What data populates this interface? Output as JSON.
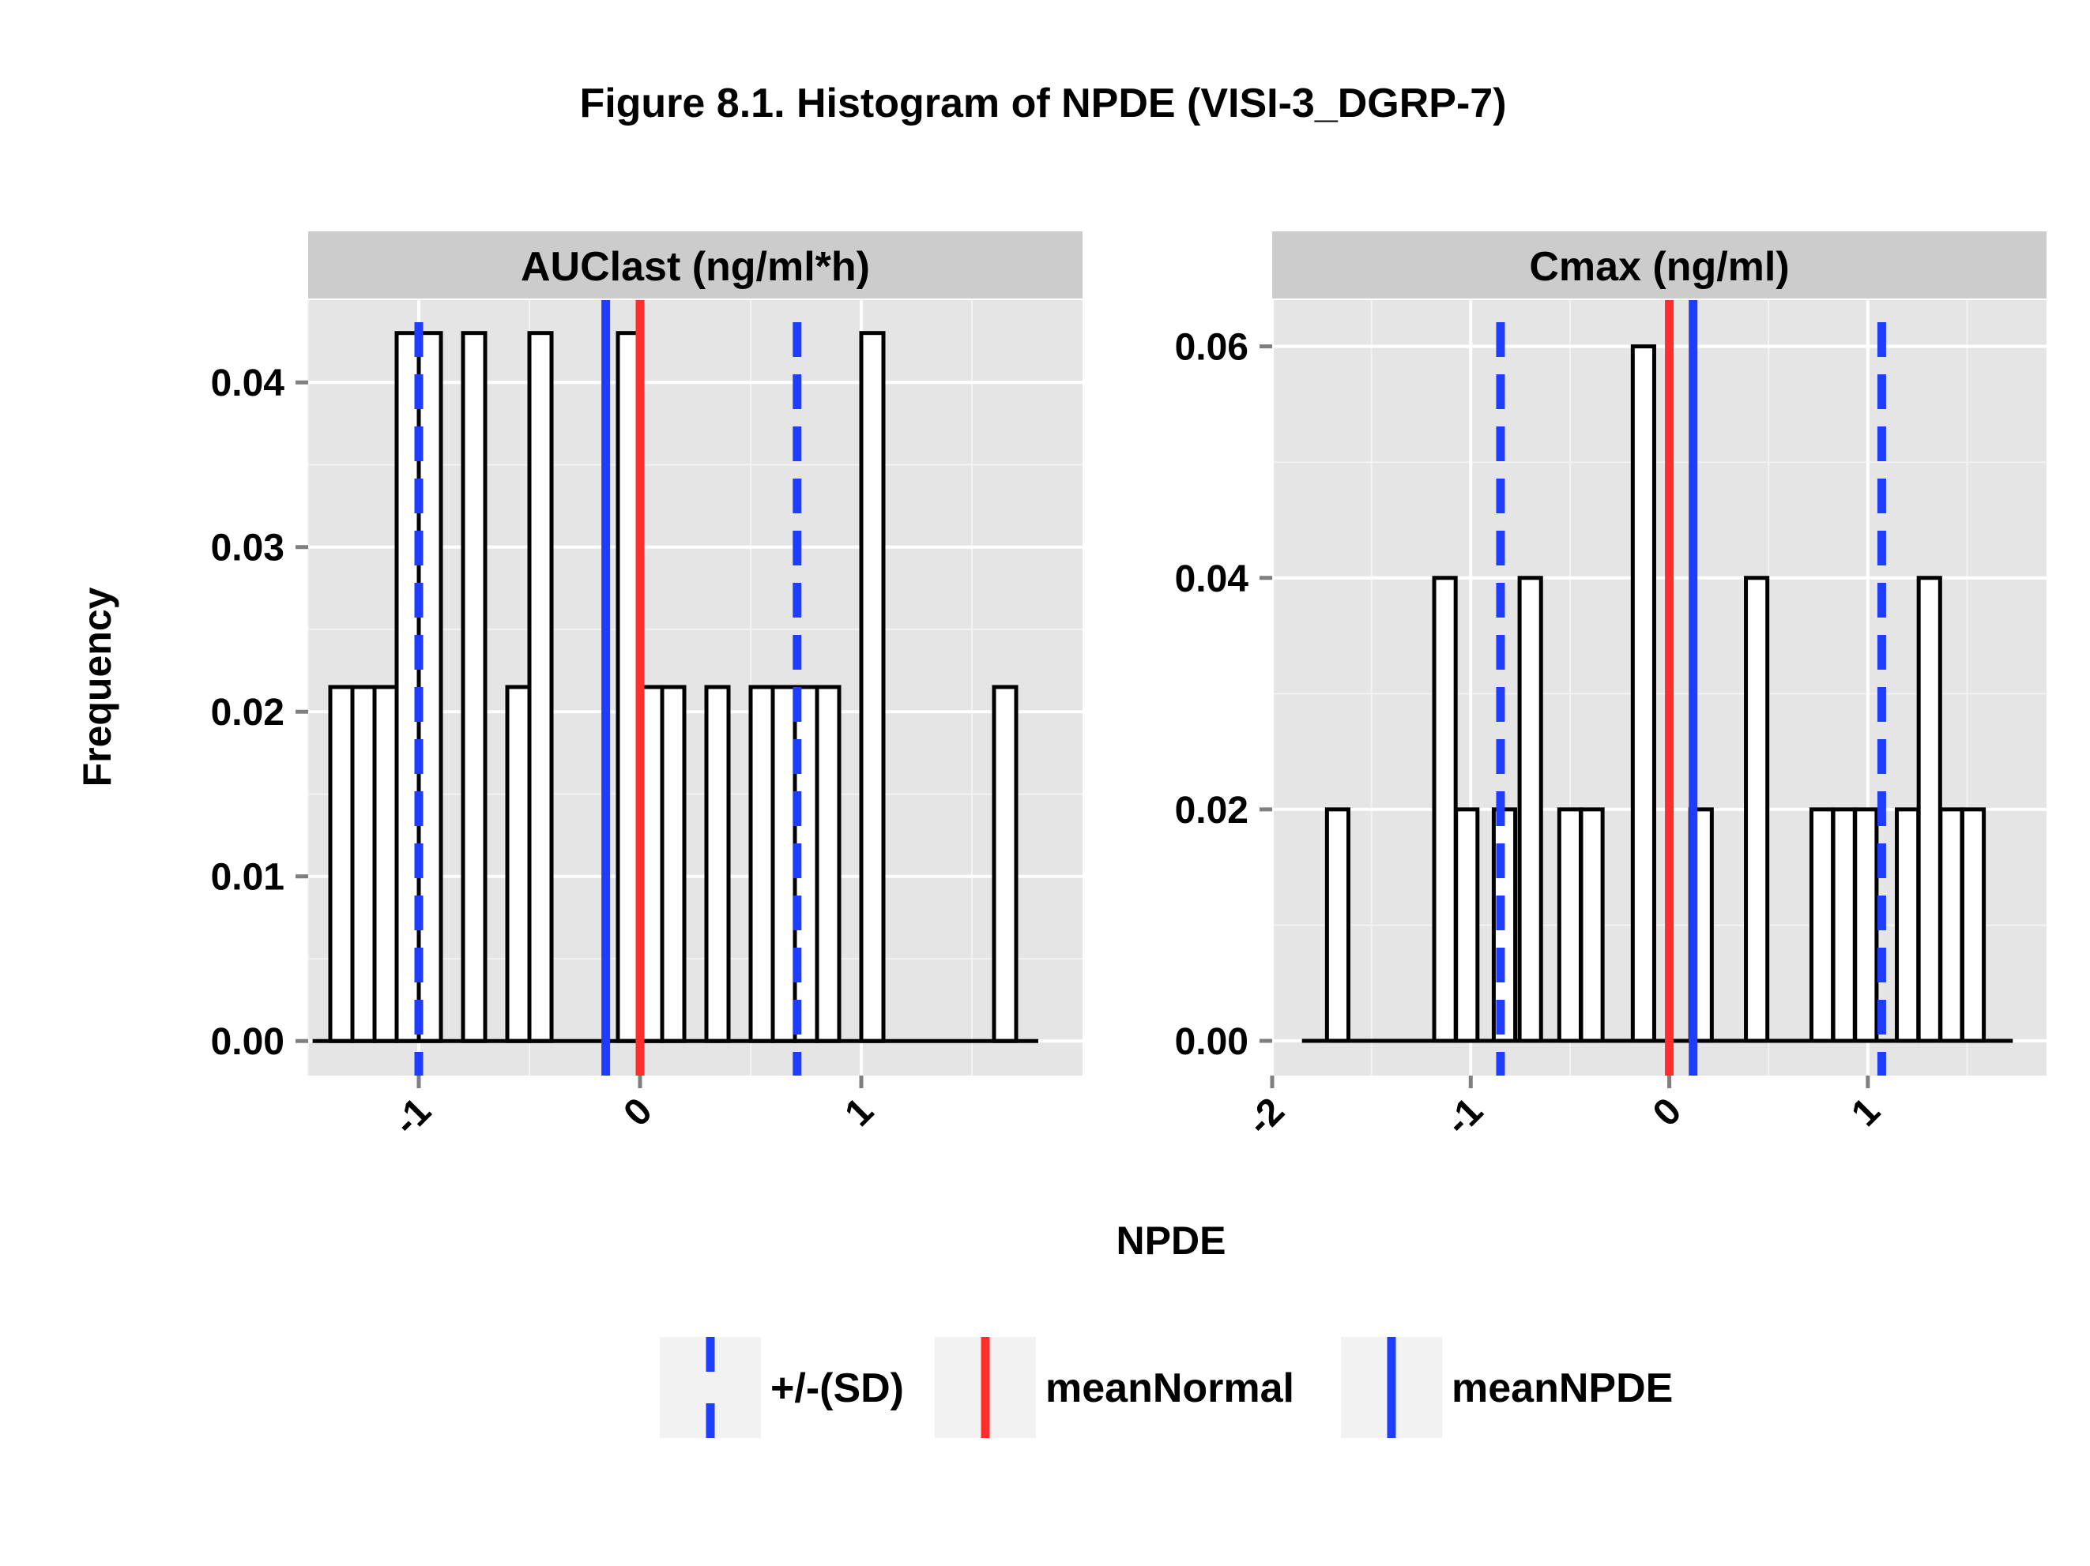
{
  "title": "Figure 8.1. Histogram of NPDE (VISI-3_DGRP-7)",
  "xlabel": "NPDE",
  "ylabel": "Frequency",
  "colors": {
    "panel_bg": "#E5E5E5",
    "strip_bg": "#CCCCCC",
    "grid": "#FFFFFF",
    "bar_fill": "#FFFFFF",
    "bar_stroke": "#000000",
    "sd_line": "#1E3DFF",
    "mean_normal": "#FF2D2D",
    "mean_npde": "#1E3DFF",
    "legend_key_bg": "#F2F2F2"
  },
  "legend": {
    "items": [
      {
        "label": "+/-(SD)",
        "style": "dashed",
        "color": "#1E3DFF"
      },
      {
        "label": "meanNormal",
        "style": "solid",
        "color": "#FF2D2D"
      },
      {
        "label": "meanNPDE",
        "style": "solid",
        "color": "#1E3DFF"
      }
    ]
  },
  "chart_data": [
    {
      "type": "bar",
      "panel_title": "AUClast (ng/ml*h)",
      "xlim": [
        -1.5,
        2.0
      ],
      "ylim": [
        -0.0021,
        0.045
      ],
      "xticks": [
        -1,
        0,
        1
      ],
      "xtick_labels": [
        "-1",
        "0",
        "1"
      ],
      "yticks": [
        0.0,
        0.01,
        0.02,
        0.03,
        0.04
      ],
      "ytick_labels": [
        "0.00",
        "0.01",
        "0.02",
        "0.03",
        "0.04"
      ],
      "bin_width": 0.1,
      "baseline_range": [
        -1.48,
        1.8
      ],
      "bins": [
        {
          "x": -1.35,
          "y": 0.0215
        },
        {
          "x": -1.25,
          "y": 0.0215
        },
        {
          "x": -1.15,
          "y": 0.0215
        },
        {
          "x": -1.05,
          "y": 0.043
        },
        {
          "x": -0.95,
          "y": 0.043
        },
        {
          "x": -0.75,
          "y": 0.043
        },
        {
          "x": -0.55,
          "y": 0.0215
        },
        {
          "x": -0.45,
          "y": 0.043
        },
        {
          "x": -0.05,
          "y": 0.043
        },
        {
          "x": 0.05,
          "y": 0.0215
        },
        {
          "x": 0.15,
          "y": 0.0215
        },
        {
          "x": 0.35,
          "y": 0.0215
        },
        {
          "x": 0.55,
          "y": 0.0215
        },
        {
          "x": 0.65,
          "y": 0.0215
        },
        {
          "x": 0.75,
          "y": 0.0215
        },
        {
          "x": 0.85,
          "y": 0.0215
        },
        {
          "x": 1.05,
          "y": 0.043
        },
        {
          "x": 1.65,
          "y": 0.0215
        }
      ],
      "mean_normal": 0.0,
      "mean_npde": -0.155,
      "sd_lines": [
        -1.0,
        0.71
      ]
    },
    {
      "type": "bar",
      "panel_title": "Cmax (ng/ml)",
      "xlim": [
        -2.0,
        1.9
      ],
      "ylim": [
        -0.003,
        0.064
      ],
      "xticks": [
        -2,
        -1,
        0,
        1
      ],
      "xtick_labels": [
        "-2",
        "-1",
        "0",
        "1"
      ],
      "yticks": [
        0.0,
        0.02,
        0.04,
        0.06
      ],
      "ytick_labels": [
        "0.00",
        "0.02",
        "0.04",
        "0.06"
      ],
      "bin_width": 0.108,
      "baseline_range": [
        -1.85,
        1.73
      ],
      "bins": [
        {
          "x": -1.67,
          "y": 0.02
        },
        {
          "x": -1.13,
          "y": 0.04
        },
        {
          "x": -1.02,
          "y": 0.02
        },
        {
          "x": -0.83,
          "y": 0.02
        },
        {
          "x": -0.7,
          "y": 0.04
        },
        {
          "x": -0.5,
          "y": 0.02
        },
        {
          "x": -0.39,
          "y": 0.02
        },
        {
          "x": -0.13,
          "y": 0.06
        },
        {
          "x": 0.16,
          "y": 0.02
        },
        {
          "x": 0.44,
          "y": 0.04
        },
        {
          "x": 0.77,
          "y": 0.02
        },
        {
          "x": 0.88,
          "y": 0.02
        },
        {
          "x": 0.99,
          "y": 0.02
        },
        {
          "x": 1.2,
          "y": 0.02
        },
        {
          "x": 1.31,
          "y": 0.04
        },
        {
          "x": 1.42,
          "y": 0.02
        },
        {
          "x": 1.53,
          "y": 0.02
        }
      ],
      "mean_normal": 0.0,
      "mean_npde": 0.12,
      "sd_lines": [
        -0.85,
        1.07
      ]
    }
  ]
}
